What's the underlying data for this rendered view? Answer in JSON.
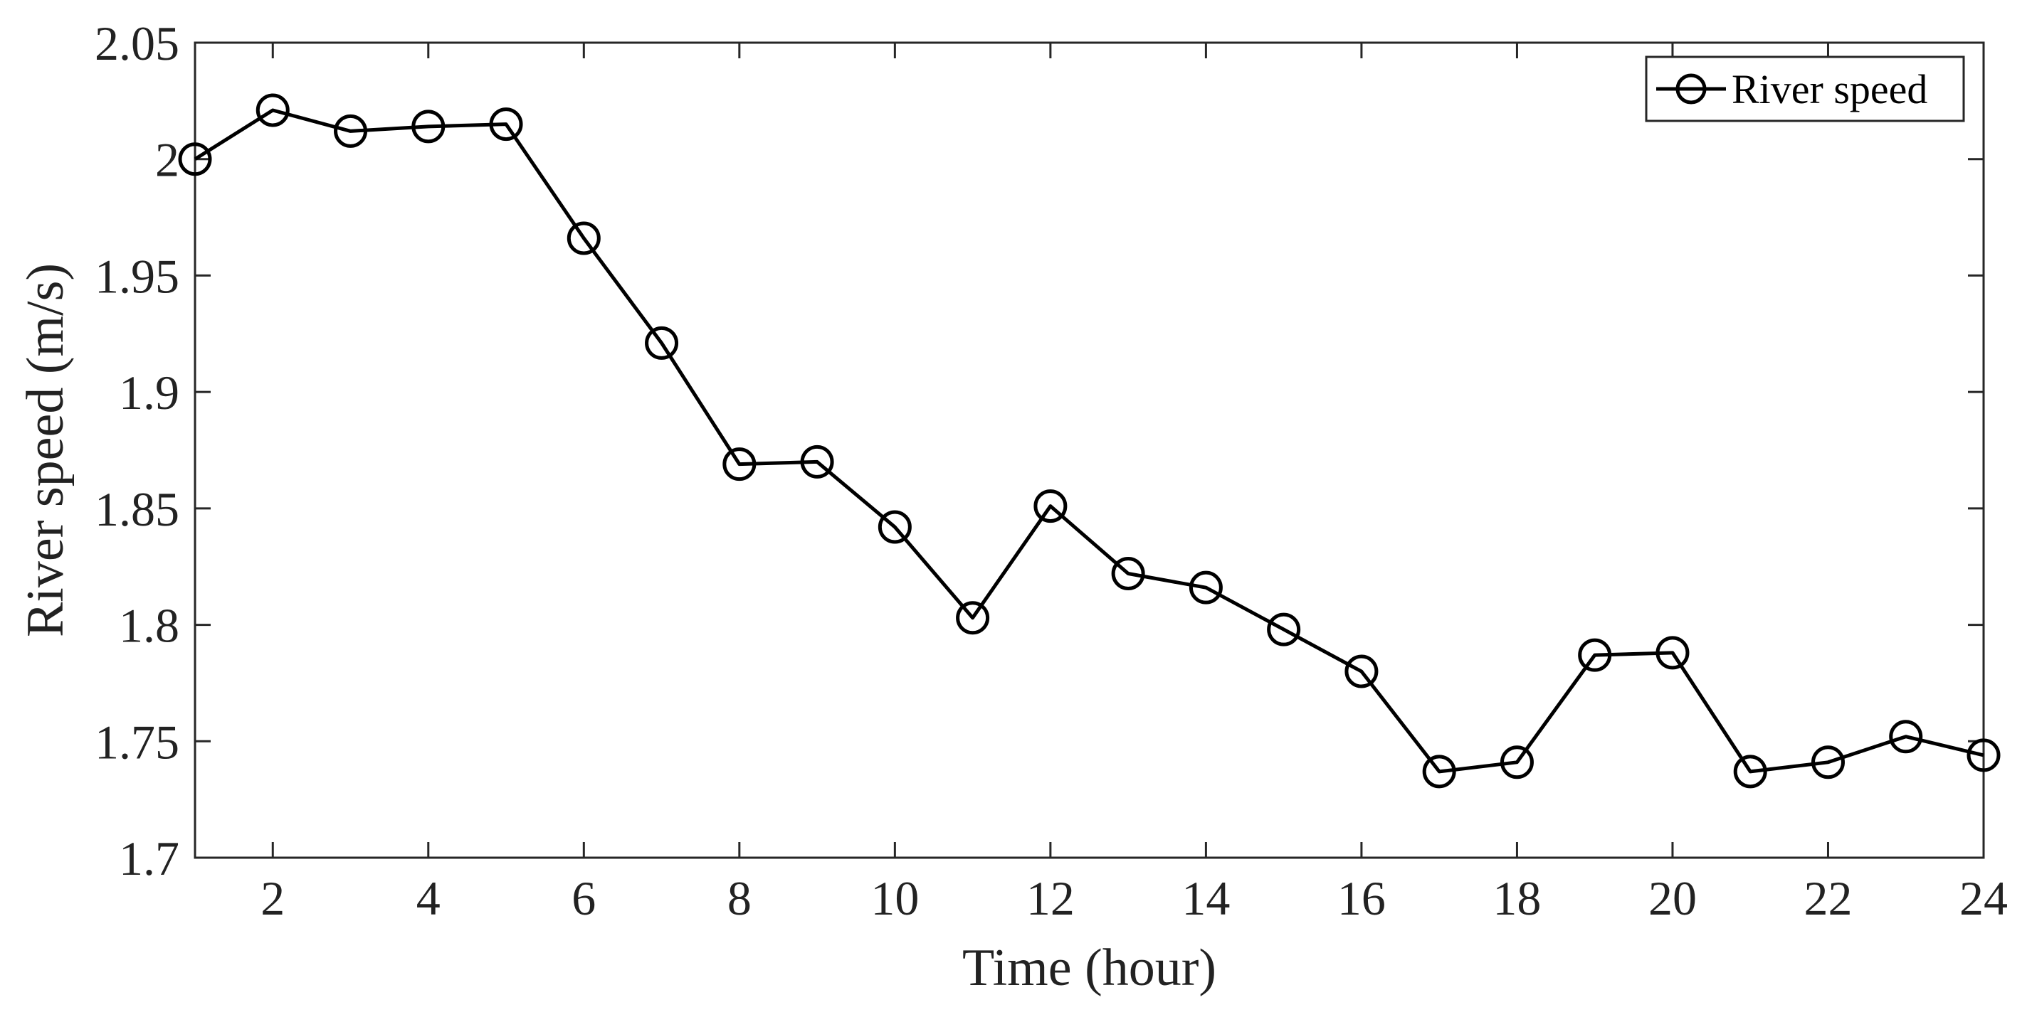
{
  "chart_data": {
    "type": "line",
    "title": "",
    "xlabel": "Time (hour)",
    "ylabel": "River speed (m/s)",
    "xlim": [
      1,
      24
    ],
    "ylim": [
      1.7,
      2.05
    ],
    "x_ticks": [
      2,
      4,
      6,
      8,
      10,
      12,
      14,
      16,
      18,
      20,
      22,
      24
    ],
    "y_ticks": [
      1.7,
      1.75,
      1.8,
      1.85,
      1.9,
      1.95,
      2,
      2.05
    ],
    "y_tick_labels": [
      "1.7",
      "1.75",
      "1.8",
      "1.85",
      "1.9",
      "1.95",
      "2",
      "2.05"
    ],
    "grid": false,
    "legend_position": "top-right",
    "series": [
      {
        "name": "River speed",
        "color": "#000000",
        "marker": "circle",
        "x": [
          1,
          2,
          3,
          4,
          5,
          6,
          7,
          8,
          9,
          10,
          11,
          12,
          13,
          14,
          15,
          16,
          17,
          18,
          19,
          20,
          21,
          22,
          23,
          24
        ],
        "values": [
          2.0,
          2.021,
          2.012,
          2.014,
          2.015,
          1.966,
          1.921,
          1.869,
          1.87,
          1.842,
          1.803,
          1.851,
          1.822,
          1.816,
          1.798,
          1.78,
          1.737,
          1.741,
          1.787,
          1.788,
          1.737,
          1.741,
          1.752,
          1.744
        ]
      }
    ]
  }
}
